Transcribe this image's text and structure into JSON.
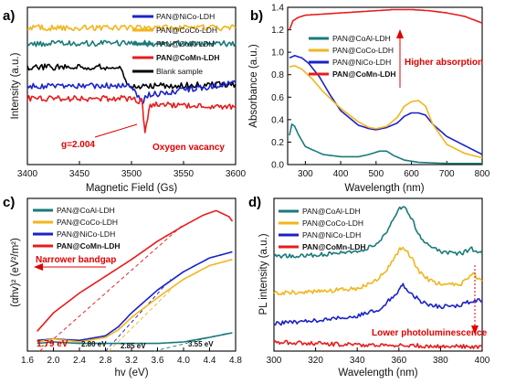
{
  "colors": {
    "CoAl": "#1a7a7a",
    "CoCo": "#f2b51c",
    "NiCo": "#1a22c8",
    "CoMn": "#e81c1c",
    "Blank": "#000000",
    "annotation": "#e00000"
  },
  "chart_data": [
    {
      "panel": "a)",
      "type": "line",
      "xlabel": "Magnetic Field (Gs)",
      "ylabel": "Intensity (a.u.)",
      "xlim": [
        3400,
        3600
      ],
      "xticks": [
        "3400",
        "3450",
        "3500",
        "3550",
        "3600"
      ],
      "legend_position": "top-right",
      "legend": [
        "PAN@NiCo-LDH",
        "PAN@CoCo-LDH",
        "PAN@CoAl-LDH",
        "PAN@CoMn-LDH",
        "Blank sample"
      ],
      "annotations": [
        "g=2.004",
        "Oxygen vacancy"
      ],
      "series": [
        {
          "name": "PAN@CoAl-LDH",
          "color_key": "CoAl",
          "x": [
            3400,
            3450,
            3500,
            3600
          ],
          "y": [
            0.77,
            0.77,
            0.77,
            0.77
          ]
        },
        {
          "name": "PAN@CoCo-LDH",
          "color_key": "CoCo",
          "x": [
            3400,
            3450,
            3500,
            3600
          ],
          "y": [
            0.87,
            0.87,
            0.87,
            0.87
          ]
        },
        {
          "name": "Blank sample",
          "color_key": "Blank",
          "x": [
            3400,
            3450,
            3490,
            3497,
            3600
          ],
          "y": [
            0.62,
            0.62,
            0.62,
            0.5,
            0.51
          ]
        },
        {
          "name": "PAN@NiCo-LDH",
          "color_key": "NiCo",
          "x": [
            3400,
            3500,
            3511,
            3514,
            3600
          ],
          "y": [
            0.5,
            0.5,
            0.38,
            0.44,
            0.52
          ]
        },
        {
          "name": "PAN@CoMn-LDH",
          "color_key": "CoMn",
          "x": [
            3400,
            3500,
            3510,
            3513,
            3518,
            3600
          ],
          "y": [
            0.42,
            0.42,
            0.4,
            0.22,
            0.38,
            0.37
          ]
        }
      ]
    },
    {
      "panel": "b)",
      "type": "line",
      "xlabel": "Wavelength (nm)",
      "ylabel": "Absorbance (a.u.)",
      "xlim": [
        250,
        800
      ],
      "ylim": [
        0.0,
        1.4
      ],
      "xticks": [
        "300",
        "400",
        "500",
        "600",
        "700",
        "800"
      ],
      "yticks": [
        "0.0",
        "0.2",
        "0.4",
        "0.6",
        "0.8",
        "1.0",
        "1.2",
        "1.4"
      ],
      "legend_position": "center-left",
      "legend": [
        "PAN@CoAl-LDH",
        "PAN@CoCo-LDH",
        "PAN@NiCo-LDH",
        "PAN@CoMn-LDH"
      ],
      "annotations": [
        "Higher absorption"
      ],
      "series": [
        {
          "name": "PAN@CoMn-LDH",
          "color_key": "CoMn",
          "x": [
            255,
            265,
            280,
            300,
            350,
            400,
            450,
            500,
            550,
            600,
            650,
            700,
            750,
            800
          ],
          "y": [
            1.2,
            1.28,
            1.31,
            1.33,
            1.34,
            1.35,
            1.36,
            1.37,
            1.38,
            1.38,
            1.37,
            1.35,
            1.32,
            1.26
          ]
        },
        {
          "name": "PAN@NiCo-LDH",
          "color_key": "NiCo",
          "x": [
            255,
            270,
            290,
            310,
            340,
            370,
            400,
            450,
            480,
            500,
            530,
            560,
            580,
            600,
            620,
            640,
            660,
            700,
            750,
            800
          ],
          "y": [
            0.95,
            0.97,
            0.95,
            0.9,
            0.78,
            0.62,
            0.48,
            0.35,
            0.32,
            0.31,
            0.33,
            0.37,
            0.43,
            0.46,
            0.46,
            0.44,
            0.36,
            0.25,
            0.17,
            0.09
          ]
        },
        {
          "name": "PAN@CoCo-LDH",
          "color_key": "CoCo",
          "x": [
            255,
            270,
            290,
            320,
            350,
            400,
            450,
            480,
            500,
            530,
            560,
            580,
            600,
            620,
            640,
            660,
            700,
            750,
            800
          ],
          "y": [
            0.87,
            0.88,
            0.85,
            0.76,
            0.65,
            0.5,
            0.38,
            0.33,
            0.32,
            0.34,
            0.42,
            0.52,
            0.56,
            0.57,
            0.52,
            0.36,
            0.18,
            0.1,
            0.06
          ]
        },
        {
          "name": "PAN@CoAl-LDH",
          "color_key": "CoAl",
          "x": [
            255,
            262,
            270,
            280,
            300,
            350,
            400,
            450,
            480,
            510,
            530,
            550,
            580,
            620,
            700,
            800
          ],
          "y": [
            0.26,
            0.36,
            0.34,
            0.27,
            0.16,
            0.09,
            0.07,
            0.07,
            0.09,
            0.12,
            0.12,
            0.08,
            0.04,
            0.02,
            0.01,
            0.01
          ]
        }
      ]
    },
    {
      "panel": "c)",
      "type": "line",
      "xlabel": "hv (eV)",
      "ylabel": "(αhv)² (eV²/m²)",
      "xlim": [
        1.6,
        4.8
      ],
      "xticks": [
        "1.6",
        "2.0",
        "2.4",
        "2.8",
        "3.2",
        "3.6",
        "4.0",
        "4.4",
        "4.8"
      ],
      "legend_position": "top-left",
      "legend": [
        "PAN@CoAl-LDH",
        "PAN@CoCo-LDH",
        "PAN@NiCo-LDH",
        "PAN@CoMn-LDH"
      ],
      "annotations": [
        "Narrower bandgap",
        "1.79 eV",
        "2.80 eV",
        "2.85 eV",
        "3.55 eV"
      ],
      "series": [
        {
          "name": "PAN@CoMn-LDH",
          "color_key": "CoMn",
          "x": [
            1.75,
            2.0,
            2.4,
            2.8,
            3.2,
            3.6,
            4.0,
            4.3,
            4.5,
            4.7,
            4.75
          ],
          "y": [
            0.13,
            0.25,
            0.38,
            0.49,
            0.6,
            0.72,
            0.82,
            0.89,
            0.92,
            0.88,
            0.85
          ]
        },
        {
          "name": "PAN@NiCo-LDH",
          "color_key": "NiCo",
          "x": [
            1.75,
            2.0,
            2.4,
            2.8,
            3.0,
            3.2,
            3.6,
            4.0,
            4.4,
            4.75
          ],
          "y": [
            0.07,
            0.08,
            0.07,
            0.1,
            0.16,
            0.25,
            0.4,
            0.52,
            0.61,
            0.65
          ]
        },
        {
          "name": "PAN@CoCo-LDH",
          "color_key": "CoCo",
          "x": [
            1.75,
            2.0,
            2.4,
            2.8,
            3.0,
            3.2,
            3.6,
            4.0,
            4.4,
            4.75
          ],
          "y": [
            0.06,
            0.08,
            0.06,
            0.09,
            0.14,
            0.22,
            0.35,
            0.47,
            0.56,
            0.6
          ]
        },
        {
          "name": "PAN@CoAl-LDH",
          "color_key": "CoAl",
          "x": [
            1.75,
            2.0,
            2.4,
            2.8,
            3.2,
            3.6,
            4.0,
            4.4,
            4.75
          ],
          "y": [
            0.05,
            0.06,
            0.05,
            0.05,
            0.05,
            0.05,
            0.06,
            0.09,
            0.12
          ]
        }
      ],
      "tangents": [
        {
          "color_key": "CoMn",
          "x": [
            1.79,
            4.0
          ],
          "y": [
            0.0,
            0.83
          ]
        },
        {
          "color_key": "NiCo",
          "x": [
            2.8,
            3.8
          ],
          "y": [
            0.0,
            0.47
          ]
        },
        {
          "color_key": "CoCo",
          "x": [
            2.85,
            3.8
          ],
          "y": [
            0.0,
            0.4
          ]
        },
        {
          "color_key": "CoAl",
          "x": [
            3.55,
            4.7
          ],
          "y": [
            0.0,
            0.12
          ]
        }
      ]
    },
    {
      "panel": "d)",
      "type": "line",
      "xlabel": "Wavelength (nm)",
      "ylabel": "PL intensity (a.u.)",
      "xlim": [
        300,
        400
      ],
      "xticks": [
        "300",
        "320",
        "340",
        "360",
        "380",
        "400"
      ],
      "legend_position": "top-left",
      "legend": [
        "PAN@CoAl-LDH",
        "PAN@CoCo-LDH",
        "PAN@NiCo-LDH",
        "PAN@CoMn-LDH"
      ],
      "annotations": [
        "Lower photoluminescence"
      ],
      "series": [
        {
          "name": "PAN@CoAl-LDH",
          "color_key": "CoAl",
          "x": [
            300,
            320,
            340,
            350,
            355,
            360,
            362,
            365,
            370,
            375,
            380,
            390,
            395,
            400
          ],
          "y": [
            0.62,
            0.63,
            0.65,
            0.7,
            0.8,
            0.93,
            0.95,
            0.9,
            0.75,
            0.68,
            0.65,
            0.64,
            0.67,
            0.64
          ]
        },
        {
          "name": "PAN@CoCo-LDH",
          "color_key": "CoCo",
          "x": [
            300,
            320,
            340,
            350,
            355,
            360,
            362,
            365,
            370,
            375,
            380,
            390,
            395,
            400
          ],
          "y": [
            0.38,
            0.39,
            0.41,
            0.47,
            0.55,
            0.66,
            0.68,
            0.63,
            0.52,
            0.46,
            0.44,
            0.44,
            0.51,
            0.46
          ]
        },
        {
          "name": "PAN@NiCo-LDH",
          "color_key": "NiCo",
          "x": [
            300,
            320,
            340,
            350,
            355,
            360,
            362,
            365,
            370,
            375,
            380,
            390,
            395,
            400
          ],
          "y": [
            0.18,
            0.2,
            0.23,
            0.27,
            0.33,
            0.4,
            0.43,
            0.39,
            0.33,
            0.3,
            0.29,
            0.3,
            0.33,
            0.33
          ]
        },
        {
          "name": "PAN@CoMn-LDH",
          "color_key": "CoMn",
          "x": [
            300,
            320,
            340,
            360,
            380,
            400
          ],
          "y": [
            0.06,
            0.05,
            0.04,
            0.04,
            0.03,
            0.03
          ]
        }
      ]
    }
  ]
}
